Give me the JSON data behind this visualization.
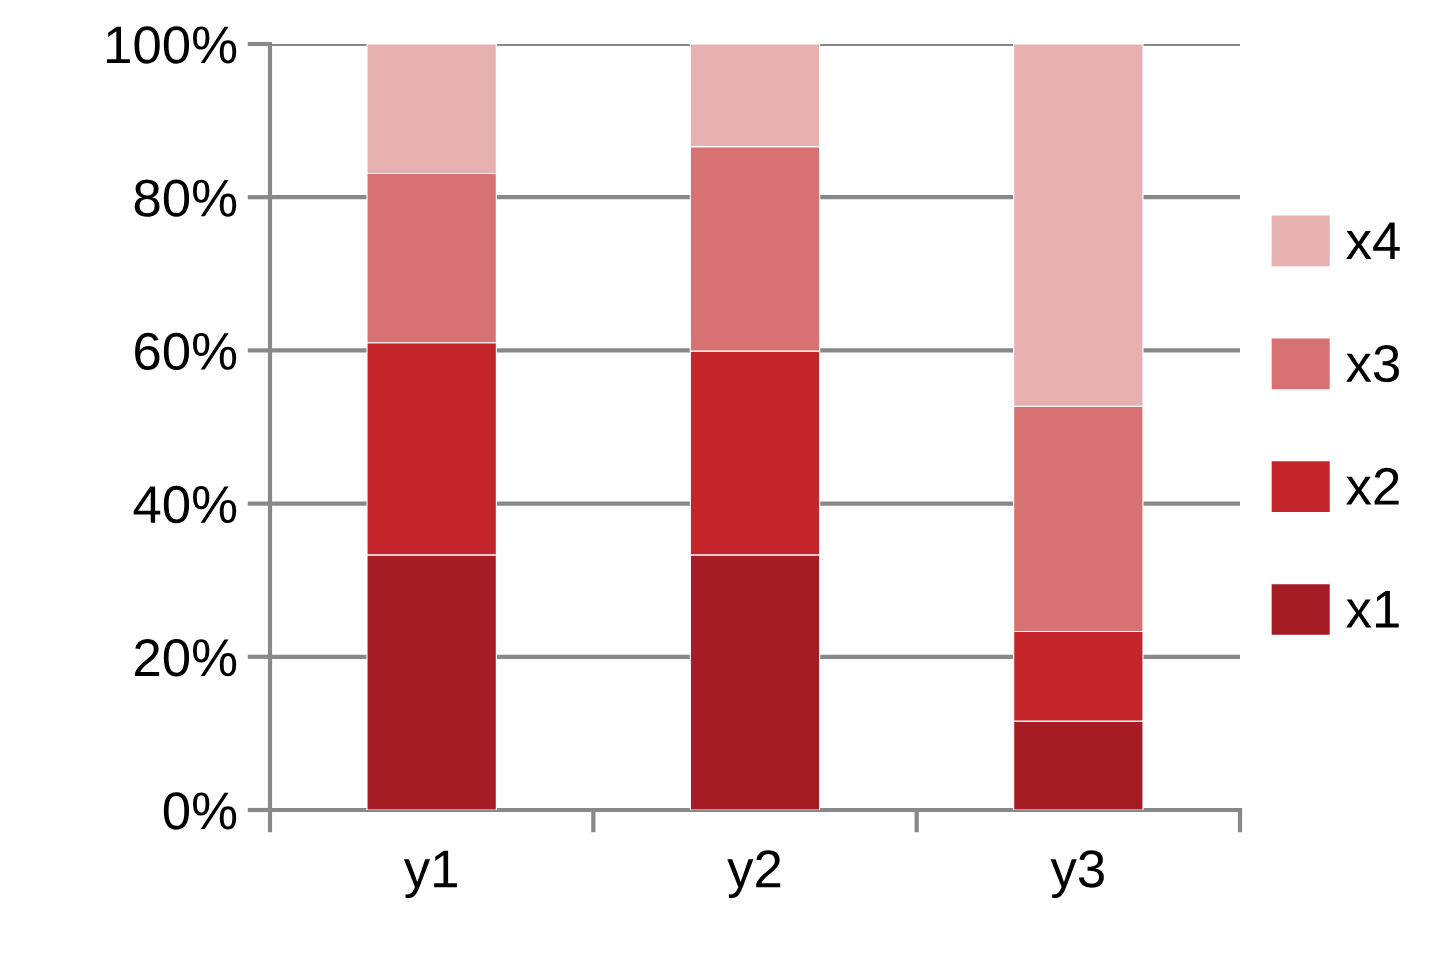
{
  "chart_data": {
    "type": "bar",
    "stacked": true,
    "categories": [
      "y1",
      "y2",
      "y3"
    ],
    "series": [
      {
        "name": "x1",
        "color": "#a51c24",
        "values": [
          33.3,
          33.3,
          11.6
        ]
      },
      {
        "name": "x2",
        "color": "#c3252b",
        "values": [
          27.7,
          26.6,
          11.7
        ]
      },
      {
        "name": "x3",
        "color": "#d87171",
        "values": [
          22.1,
          26.7,
          29.4
        ]
      },
      {
        "name": "x4",
        "color": "#e6b0b0",
        "values": [
          16.9,
          13.4,
          47.3
        ]
      }
    ],
    "ylim": [
      0,
      100
    ],
    "yticks": [
      {
        "value": 0,
        "label": "0%"
      },
      {
        "value": 20,
        "label": "20%"
      },
      {
        "value": 40,
        "label": "40%"
      },
      {
        "value": 60,
        "label": "60%"
      },
      {
        "value": 80,
        "label": "80%"
      },
      {
        "value": 100,
        "label": "100%"
      }
    ],
    "grid": "y",
    "legend": "right"
  }
}
